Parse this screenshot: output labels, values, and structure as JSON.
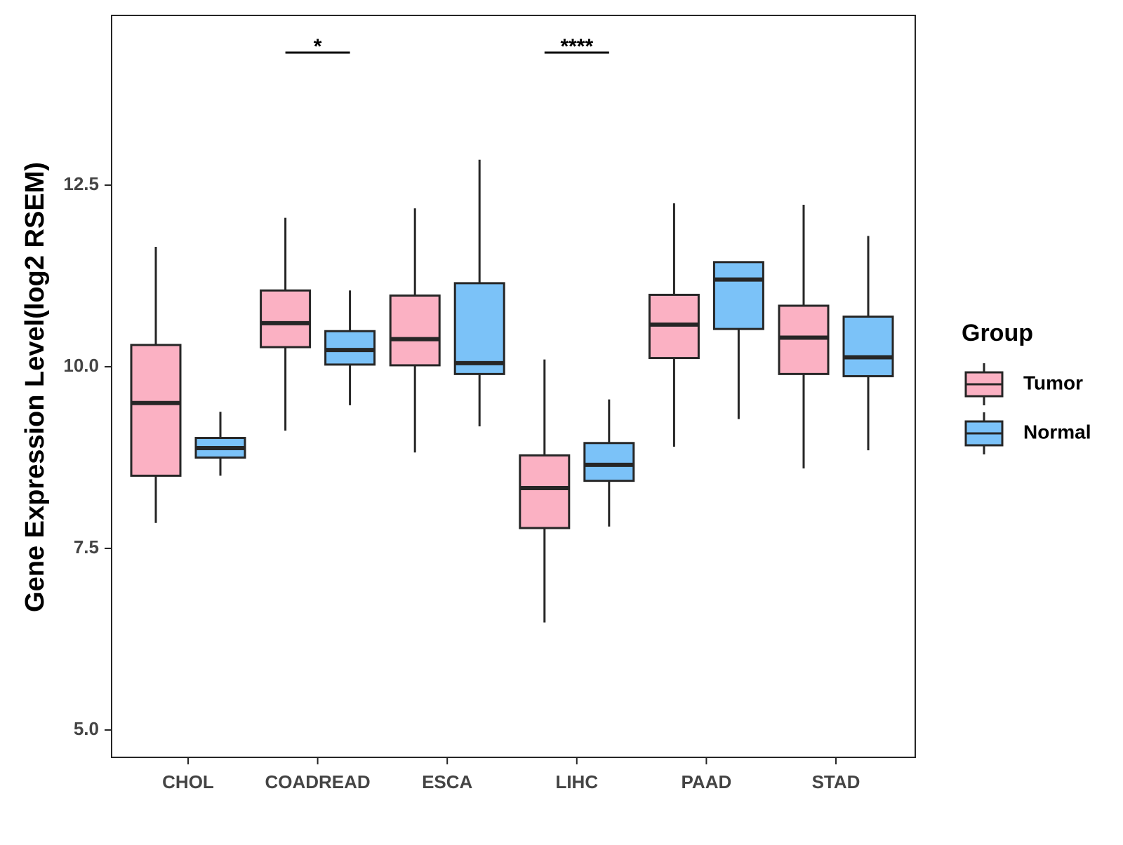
{
  "chart_data": {
    "type": "boxplot",
    "title": "",
    "xlabel": "",
    "ylabel": "Gene Expression Level(log2 RSEM)",
    "ylim": [
      4.6,
      14.8
    ],
    "yticks": [
      5.0,
      7.5,
      10.0,
      12.5
    ],
    "ytick_labels": [
      "5.0",
      "7.5",
      "10.0",
      "12.5"
    ],
    "categories": [
      "CHOL",
      "COADREAD",
      "ESCA",
      "LIHC",
      "PAAD",
      "STAD"
    ],
    "legend": {
      "title": "Group",
      "placement": "right",
      "entries": [
        "Tumor",
        "Normal"
      ]
    },
    "colors": {
      "Tumor": "#FBB1C3",
      "Normal": "#7BC2F8",
      "outline": "#262626"
    },
    "series": [
      {
        "name": "Tumor",
        "boxes": [
          {
            "category": "CHOL",
            "min": 7.85,
            "q1": 8.5,
            "median": 9.5,
            "q3": 10.3,
            "max": 11.65
          },
          {
            "category": "COADREAD",
            "min": 9.12,
            "q1": 10.27,
            "median": 10.6,
            "q3": 11.05,
            "max": 12.05
          },
          {
            "category": "ESCA",
            "min": 8.82,
            "q1": 10.02,
            "median": 10.38,
            "q3": 10.98,
            "max": 12.18
          },
          {
            "category": "LIHC",
            "min": 6.48,
            "q1": 7.78,
            "median": 8.33,
            "q3": 8.78,
            "max": 10.1
          },
          {
            "category": "PAAD",
            "min": 8.9,
            "q1": 10.12,
            "median": 10.58,
            "q3": 10.99,
            "max": 12.25
          },
          {
            "category": "STAD",
            "min": 8.6,
            "q1": 9.9,
            "median": 10.4,
            "q3": 10.84,
            "max": 12.23
          }
        ]
      },
      {
        "name": "Normal",
        "boxes": [
          {
            "category": "CHOL",
            "min": 8.5,
            "q1": 8.75,
            "median": 8.88,
            "q3": 9.02,
            "max": 9.38
          },
          {
            "category": "COADREAD",
            "min": 9.47,
            "q1": 10.03,
            "median": 10.23,
            "q3": 10.49,
            "max": 11.05
          },
          {
            "category": "ESCA",
            "min": 9.18,
            "q1": 9.9,
            "median": 10.05,
            "q3": 11.15,
            "max": 12.85
          },
          {
            "category": "LIHC",
            "min": 7.8,
            "q1": 8.43,
            "median": 8.65,
            "q3": 8.95,
            "max": 9.55
          },
          {
            "category": "PAAD",
            "min": 9.28,
            "q1": 10.52,
            "median": 11.2,
            "q3": 11.44,
            "max": 11.44
          },
          {
            "category": "STAD",
            "min": 8.85,
            "q1": 9.87,
            "median": 10.13,
            "q3": 10.69,
            "max": 11.8
          }
        ]
      }
    ],
    "significance": [
      {
        "category": "COADREAD",
        "label": "*"
      },
      {
        "category": "LIHC",
        "label": "****"
      }
    ]
  }
}
